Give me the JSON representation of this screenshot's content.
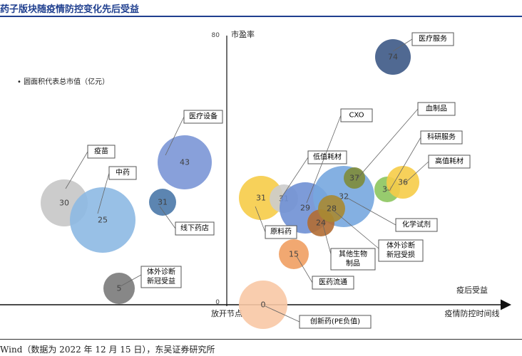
{
  "header": {
    "title": "药子版块随疫情防控变化先后受益",
    "source": "Wind（数据为 2022 年 12 月 15 日），东吴证券研究所"
  },
  "chart_data": {
    "type": "scatter",
    "legend_note": "• 圆面积代表总市值（亿元）",
    "x_axis": {
      "label": "疫情防控时间线",
      "left_label": "放开节点",
      "right_label": "疫后受益"
    },
    "y_axis": {
      "label": "市盈率",
      "ticks": [
        "80",
        "0"
      ],
      "range": [
        0,
        80
      ]
    },
    "colors": {
      "gray_light": "#c6c6c6",
      "blue_light": "#8db9e3",
      "blue_mid": "#7b96d6",
      "steel": "#4a78a8",
      "gray_dark": "#7a7a7a",
      "navy": "#3d5986",
      "gold": "#f6cc48",
      "olive": "#7e8c3a",
      "sky": "#77a7df",
      "green": "#8cc55e",
      "brown": "#b26d33",
      "olive_brown": "#a88a32",
      "orange": "#ef9f62",
      "peach": "#f8c8a5"
    },
    "points": [
      {
        "name": "疫苗",
        "pe": 30,
        "color": "#c6c6c6"
      },
      {
        "name": "中药",
        "pe": 25,
        "color": "#8db9e3"
      },
      {
        "name": "医疗设备",
        "pe": 43,
        "color": "#7b96d6"
      },
      {
        "name": "线下药店",
        "pe": 31,
        "color": "#4a78a8"
      },
      {
        "name": "体外诊断新冠受益",
        "pe": 5,
        "color": "#7a7a7a"
      },
      {
        "name": "医疗服务",
        "pe": 74,
        "color": "#3d5986"
      },
      {
        "name": "原料药",
        "pe": 31,
        "color": "#f6cc48"
      },
      {
        "name": "低值耗材",
        "pe": 31,
        "color": "#cccccc"
      },
      {
        "name": "CXO",
        "pe": 29,
        "color": "#6f90d4"
      },
      {
        "name": "化学试剂",
        "pe": 32,
        "color": "#77a7df"
      },
      {
        "name": "血制品",
        "pe": 37,
        "color": "#7e8c3a"
      },
      {
        "name": "科研服务",
        "pe": 34,
        "color": "#8cc55e"
      },
      {
        "name": "高值耗材",
        "pe": 36,
        "color": "#f6cc48"
      },
      {
        "name": "其他生物制品",
        "pe": 24,
        "color": "#b26d33"
      },
      {
        "name": "体外诊断新冠受损",
        "pe": 28,
        "color": "#a88a32"
      },
      {
        "name": "医药流通",
        "pe": 15,
        "color": "#ef9f62"
      },
      {
        "name": "创新药(PE负值)",
        "pe": 0,
        "color": "#f8c8a5"
      }
    ]
  }
}
